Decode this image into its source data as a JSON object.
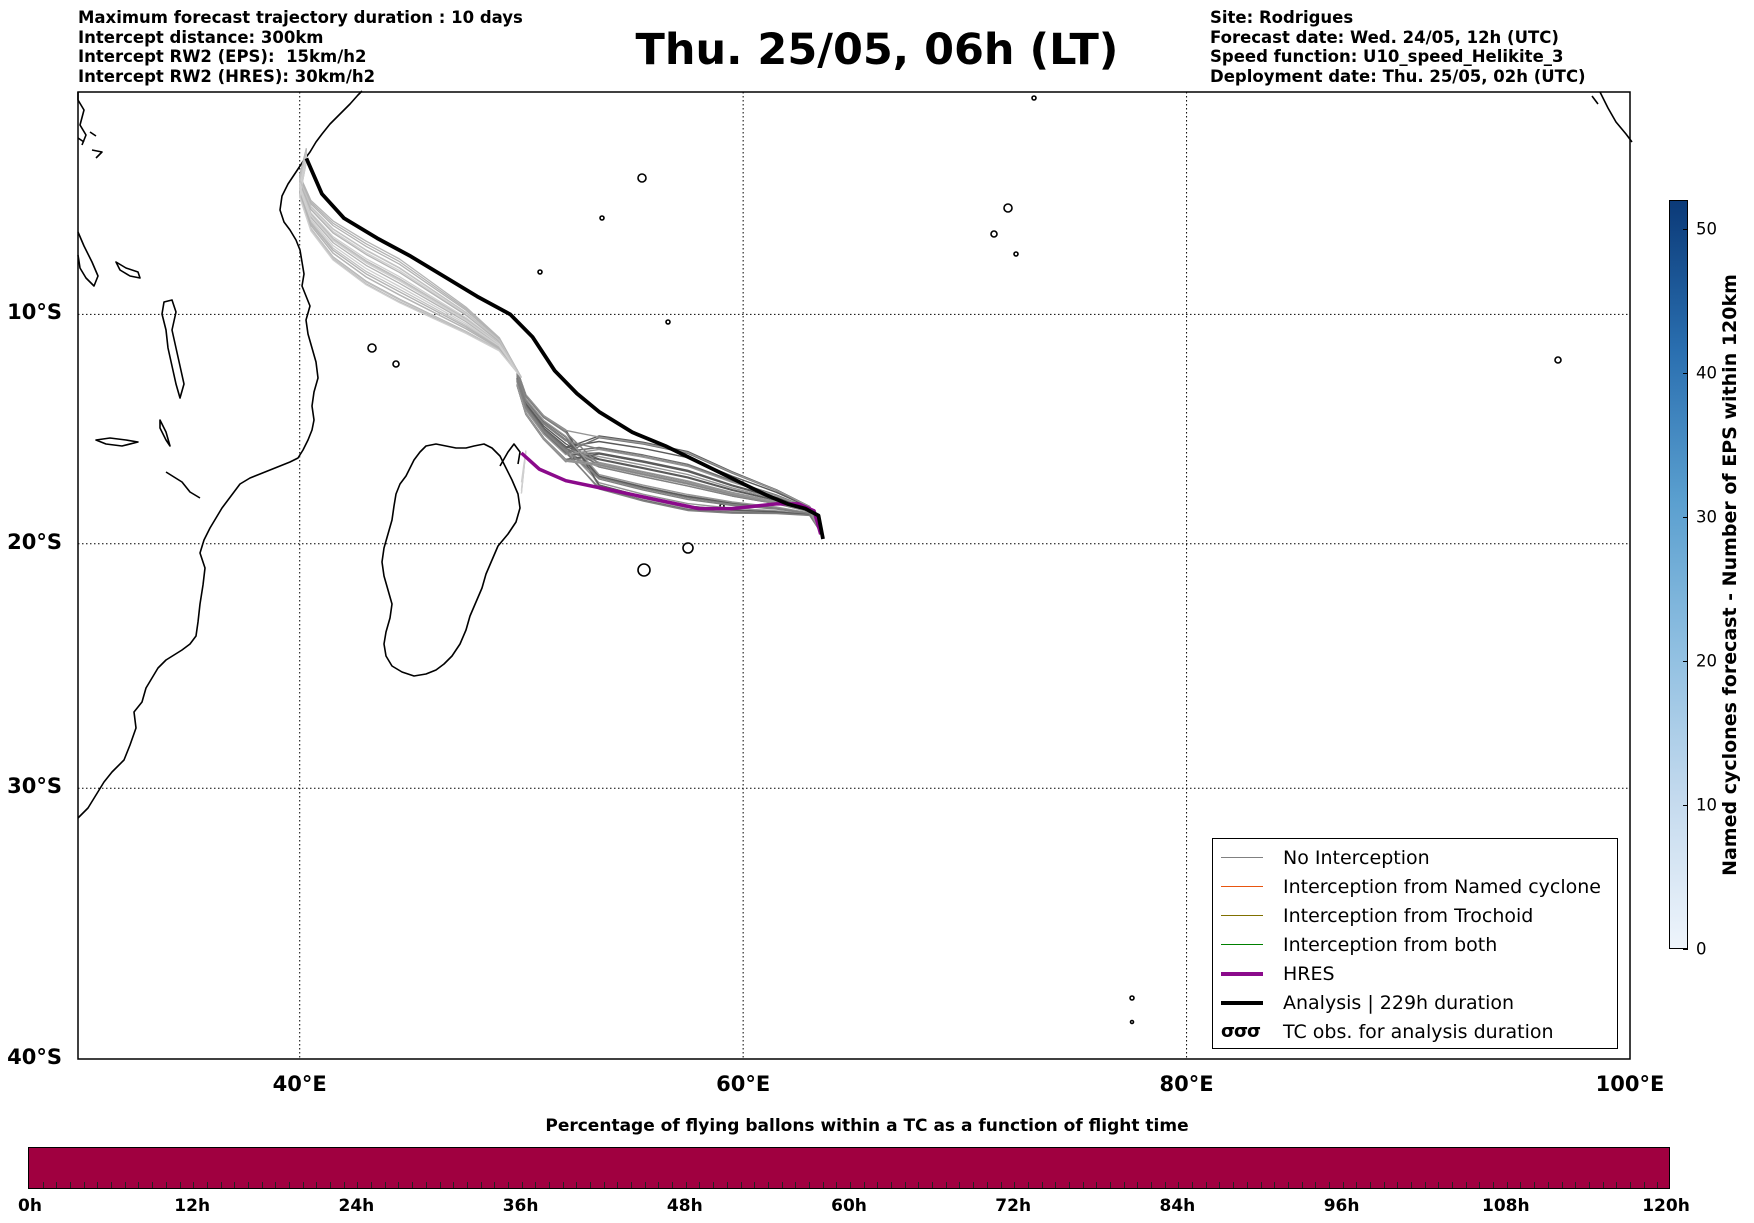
{
  "header": {
    "title": "Thu. 25/05, 06h (LT)",
    "left_lines": [
      "Maximum forecast trajectory duration : 10 days",
      "Intercept distance: 300km",
      "Intercept RW2 (EPS):  15km/h2",
      "Intercept RW2 (HRES): 30km/h2"
    ],
    "right_lines": [
      "Site: Rodrigues",
      "Forecast date: Wed. 24/05, 12h (UTC)",
      "Speed function: U10_speed_Helikite_3",
      "Deployment date: Thu. 25/05, 02h (UTC)"
    ]
  },
  "map": {
    "lon_range": [
      30,
      100
    ],
    "lat_range": [
      -40,
      0
    ],
    "lon_ticks": [
      {
        "value": 40,
        "label": "40°E"
      },
      {
        "value": 60,
        "label": "60°E"
      },
      {
        "value": 80,
        "label": "80°E"
      },
      {
        "value": 100,
        "label": "100°E"
      }
    ],
    "lat_ticks": [
      {
        "value": -10,
        "label": "10°S"
      },
      {
        "value": -20,
        "label": "20°S"
      },
      {
        "value": -30,
        "label": "30°S"
      },
      {
        "value": -40,
        "label": "40°S"
      }
    ],
    "grid": "dotted"
  },
  "legend": {
    "placement": "lower-right",
    "entries": [
      {
        "label": "No Interception",
        "color": "#808080",
        "style": "thin"
      },
      {
        "label": "Interception from Named cyclone",
        "color": "#e8550f",
        "style": "thin"
      },
      {
        "label": "Interception from Trochoid",
        "color": "#807000",
        "style": "thin"
      },
      {
        "label": "Interception from both",
        "color": "#008000",
        "style": "thin"
      },
      {
        "label": "HRES",
        "color": "#8b0a8b",
        "style": "thick"
      },
      {
        "label": "Analysis | 229h duration",
        "color": "#000000",
        "style": "thick"
      },
      {
        "label": "TC obs. for analysis duration",
        "icon": "cyclone-symbols-icon",
        "glyphs": "σσσ"
      }
    ]
  },
  "trajectories": {
    "analysis": {
      "color": "#000000",
      "points": [
        [
          63.6,
          -19.8
        ],
        [
          63.4,
          -18.8
        ],
        [
          62.8,
          -18.5
        ],
        [
          62.0,
          -18.3
        ],
        [
          61.0,
          -17.9
        ],
        [
          59.5,
          -17.2
        ],
        [
          58.0,
          -16.5
        ],
        [
          56.5,
          -15.8
        ],
        [
          55.0,
          -15.2
        ],
        [
          53.5,
          -14.3
        ],
        [
          52.5,
          -13.5
        ],
        [
          51.5,
          -12.5
        ],
        [
          50.5,
          -11.0
        ],
        [
          49.5,
          -10.0
        ],
        [
          48.0,
          -9.2
        ],
        [
          46.5,
          -8.3
        ],
        [
          45.0,
          -7.4
        ],
        [
          43.5,
          -6.6
        ],
        [
          42.0,
          -5.7
        ],
        [
          41.0,
          -4.6
        ],
        [
          40.3,
          -3.0
        ]
      ]
    },
    "hres": {
      "color": "#8b0a8b",
      "points": [
        [
          63.5,
          -19.6
        ],
        [
          63.2,
          -18.6
        ],
        [
          62.5,
          -18.3
        ],
        [
          61.5,
          -18.3
        ],
        [
          60.5,
          -18.4
        ],
        [
          59.5,
          -18.5
        ],
        [
          58.0,
          -18.5
        ],
        [
          56.5,
          -18.2
        ],
        [
          55.0,
          -17.9
        ],
        [
          53.5,
          -17.6
        ],
        [
          52.0,
          -17.3
        ],
        [
          50.8,
          -16.8
        ],
        [
          50.0,
          -16.1
        ]
      ]
    }
  },
  "colorbar_vertical": {
    "label": "Named cyclones forecast - Number of EPS within 120km",
    "range": [
      0,
      52
    ],
    "ticks": [
      0,
      10,
      20,
      30,
      40,
      50
    ],
    "tick_labels": [
      "0",
      "10",
      "20",
      "30",
      "40",
      "50"
    ],
    "color_low": "#eef4fb",
    "color_high": "#0b3a78"
  },
  "colorbar_horizontal": {
    "title": "Percentage of flying ballons within a TC as a function of flight time",
    "ticks": [
      "0h",
      "12h",
      "24h",
      "36h",
      "48h",
      "60h",
      "72h",
      "84h",
      "96h",
      "108h",
      "120h"
    ],
    "fill_color": "#a00040",
    "range_hours": [
      0,
      120
    ]
  }
}
